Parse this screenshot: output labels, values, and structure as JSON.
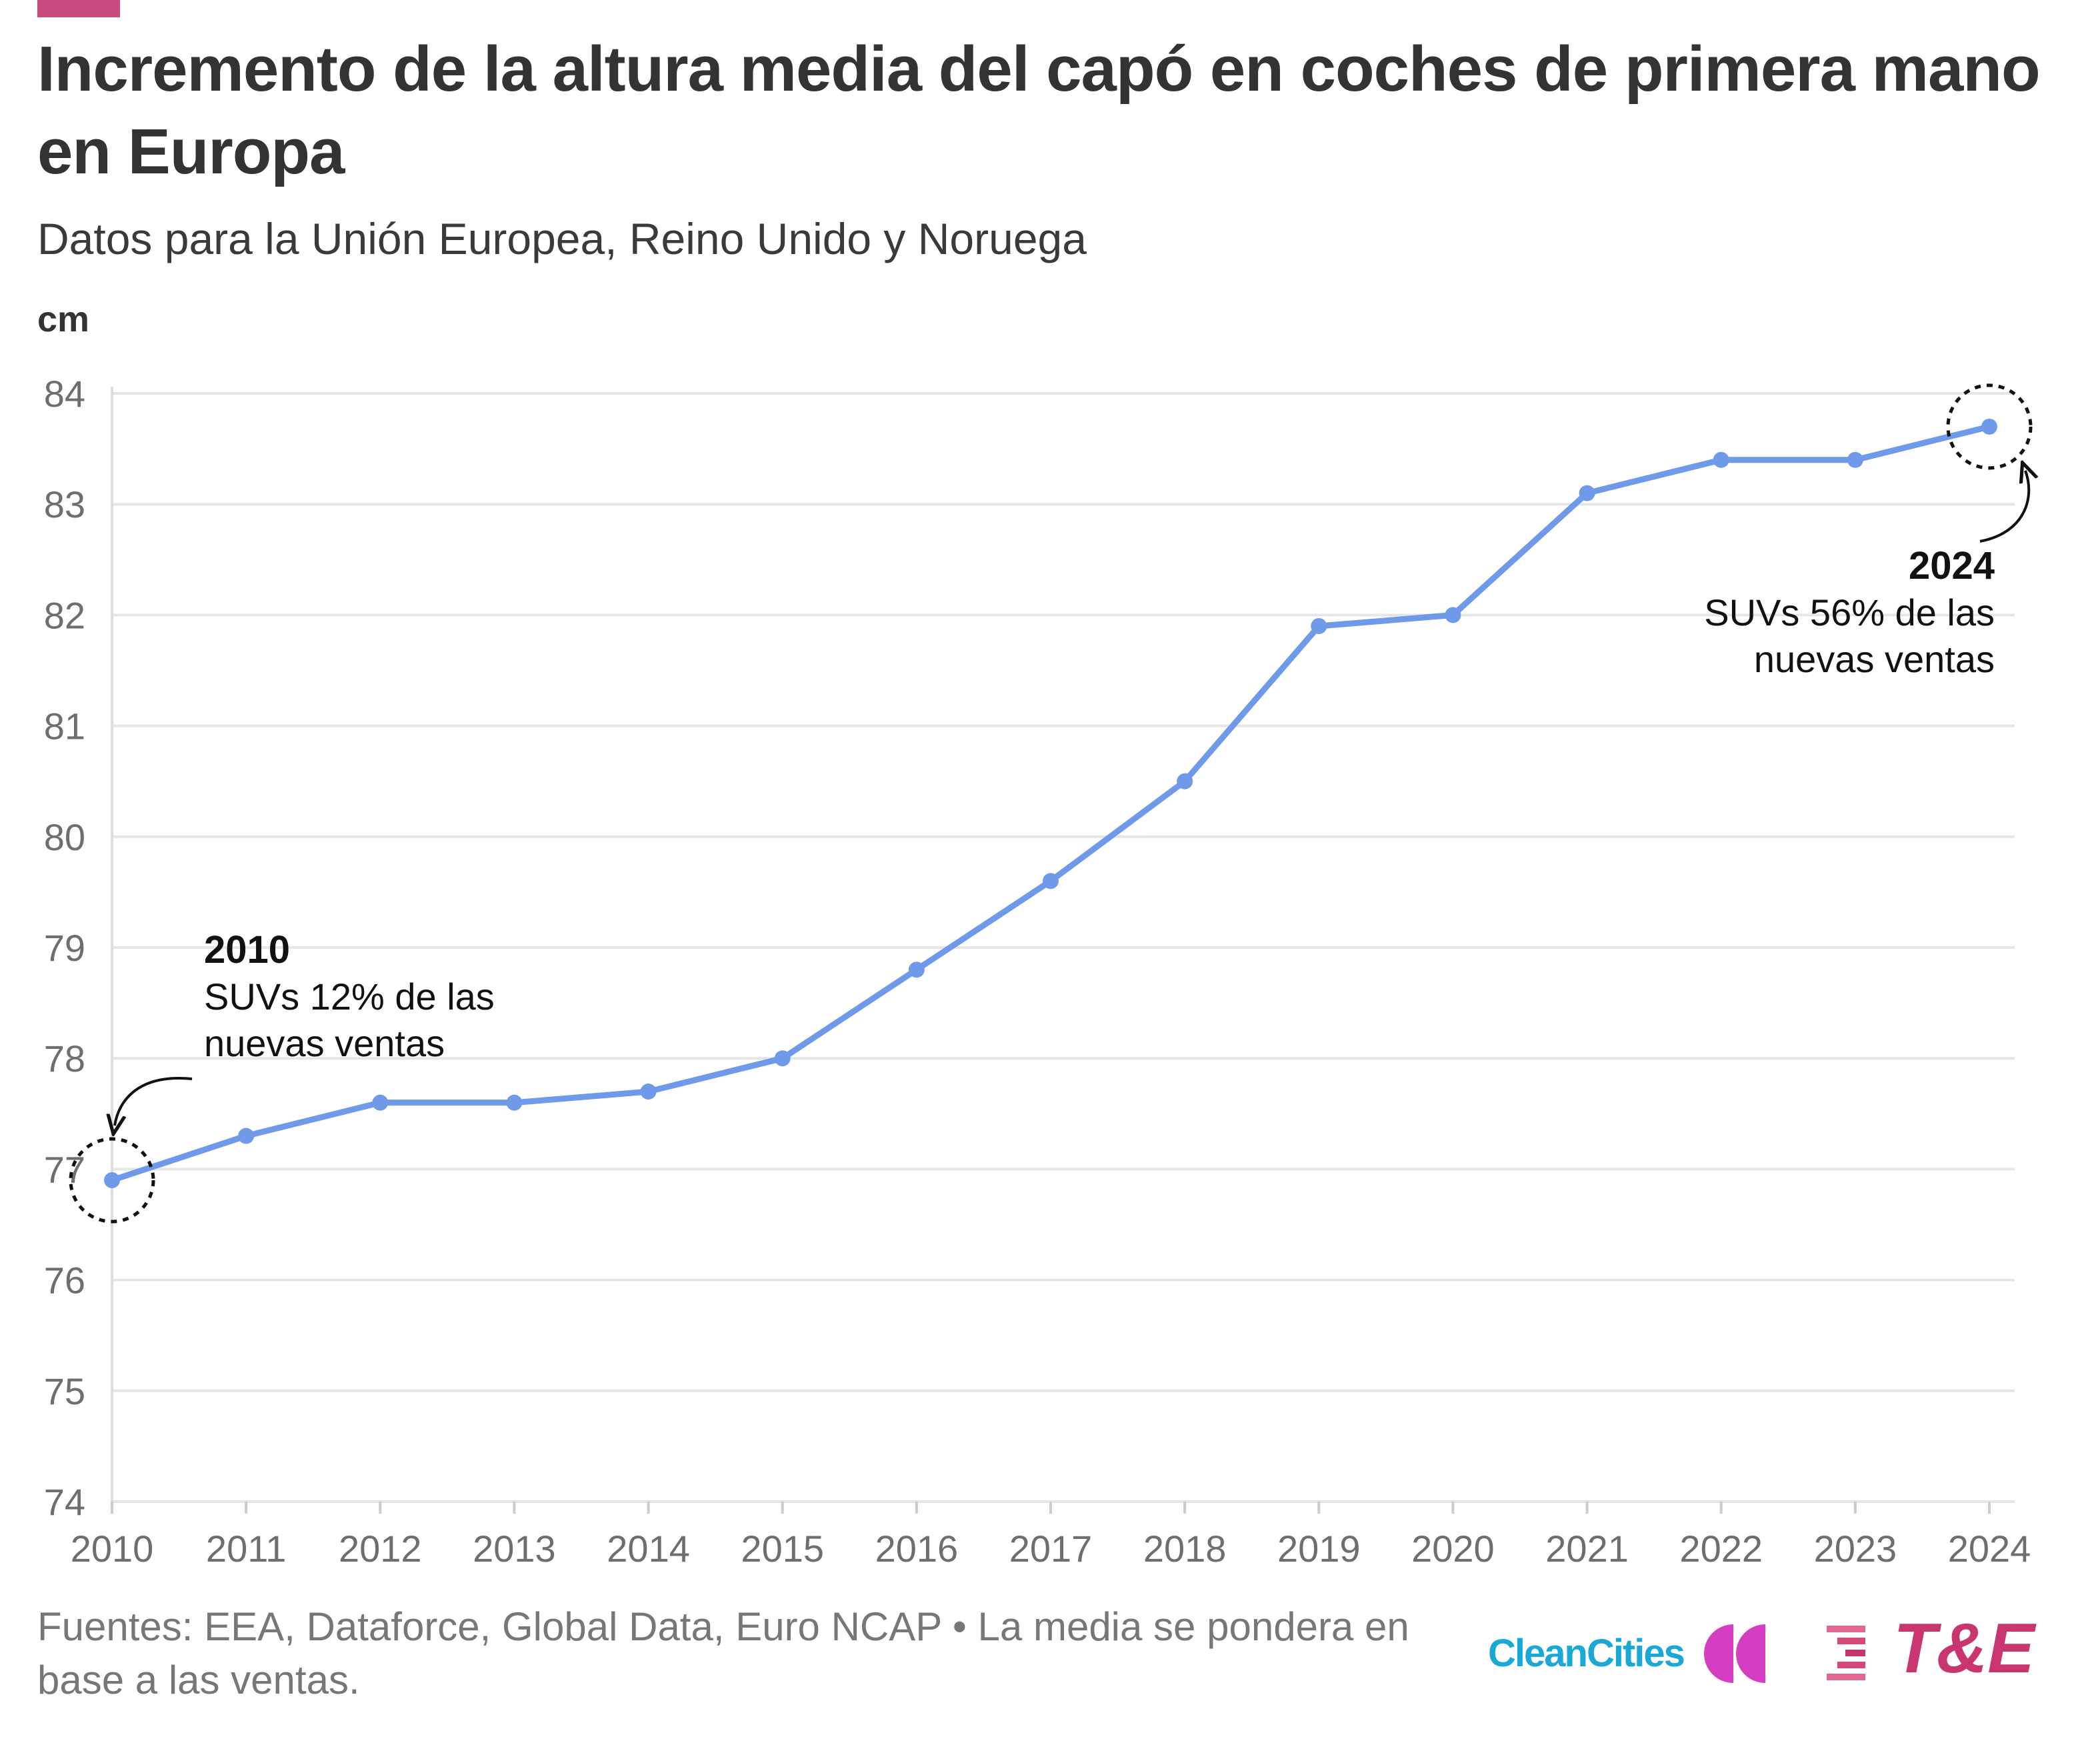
{
  "colors": {
    "accent": "#c94a7c",
    "line": "#6f9aea",
    "grid": "#e6e6e6",
    "axis_text": "#6e6e6e",
    "annotation": "#111111",
    "logo_cleancities": "#1aa8d6",
    "logo_te": "#c9366f"
  },
  "header": {
    "title": "Incremento de la altura media del capó en coches de primera mano en Europa",
    "subtitle": "Datos para la Unión Europea, Reino Unido y Noruega",
    "unit": "cm"
  },
  "chart_data": {
    "type": "line",
    "x": [
      2010,
      2011,
      2012,
      2013,
      2014,
      2015,
      2016,
      2017,
      2018,
      2019,
      2020,
      2021,
      2022,
      2023,
      2024
    ],
    "series": [
      {
        "values": [
          76.9,
          77.3,
          77.6,
          77.6,
          77.7,
          78.0,
          78.8,
          79.6,
          80.5,
          81.9,
          82.0,
          83.1,
          83.4,
          83.4,
          83.7
        ]
      }
    ],
    "ylabel": "cm",
    "ylim": [
      74,
      84
    ],
    "yticks": [
      74,
      75,
      76,
      77,
      78,
      79,
      80,
      81,
      82,
      83,
      84
    ],
    "xticks": [
      "2010",
      "2011",
      "2012",
      "2013",
      "2014",
      "2015",
      "2016",
      "2017",
      "2018",
      "2019",
      "2020",
      "2021",
      "2022",
      "2023",
      "2024"
    ],
    "grid": true,
    "annotations": [
      {
        "x": 2010,
        "y": 76.9,
        "title": "2010",
        "lines": [
          "SUVs 12% de las",
          "nuevas ventas"
        ]
      },
      {
        "x": 2024,
        "y": 83.7,
        "title": "2024",
        "lines": [
          "SUVs 56% de las",
          "nuevas ventas"
        ]
      }
    ]
  },
  "footer": {
    "source": "Fuentes: EEA, Dataforce, Global Data, Euro NCAP • La media se pondera en base a las ventas."
  },
  "logos": {
    "cleancities": {
      "text": "CleanCities",
      "icon": "cleancities-double-arc-icon"
    },
    "te": {
      "text": "T&E",
      "icon": "te-stripes-icon"
    }
  }
}
